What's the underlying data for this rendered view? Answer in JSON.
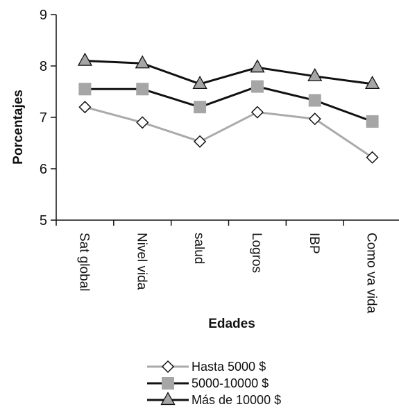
{
  "chart_data": {
    "type": "line",
    "categories": [
      "Sat global",
      "Nivel vida",
      "salud",
      "Logros",
      "IBP",
      "Como va vida"
    ],
    "series": [
      {
        "name": "Hasta 5000 $",
        "values": [
          7.2,
          6.9,
          6.53,
          7.1,
          6.97,
          6.22
        ],
        "color": "#aaaaaa",
        "marker": "diamond"
      },
      {
        "name": "5000-10000 $",
        "values": [
          7.55,
          7.55,
          7.2,
          7.6,
          7.33,
          6.92
        ],
        "color": "#111111",
        "marker": "square"
      },
      {
        "name": "Más de 10000 $",
        "values": [
          8.1,
          8.05,
          7.65,
          7.97,
          7.8,
          7.65
        ],
        "color": "#111111",
        "marker": "triangle"
      }
    ],
    "yticks": [
      5,
      6,
      7,
      8,
      9
    ],
    "ylim": [
      5,
      9
    ],
    "xlabel": "Edades",
    "ylabel": "Porcentajes",
    "grid": false,
    "legend_position": "bottom"
  }
}
